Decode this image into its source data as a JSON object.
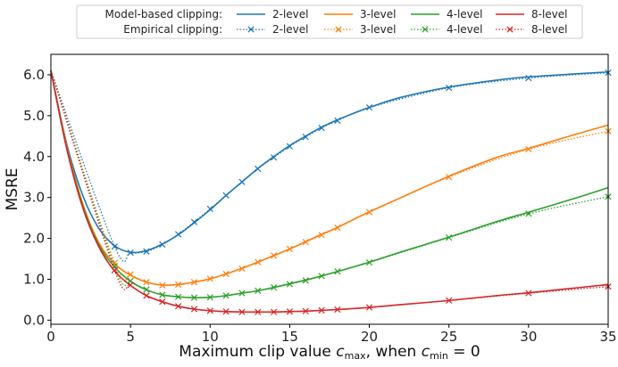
{
  "chart_data": {
    "type": "line",
    "title": "",
    "xlabel": "Maximum clip value c_max, when c_min = 0",
    "ylabel": "MSRE",
    "xlim": [
      0,
      35
    ],
    "ylim": [
      -0.1,
      6.5
    ],
    "xticks": [
      "0",
      "5",
      "10",
      "15",
      "20",
      "25",
      "30",
      "35"
    ],
    "yticks": [
      "0.0",
      "1.0",
      "2.0",
      "3.0",
      "4.0",
      "5.0",
      "6.0"
    ],
    "grid": false,
    "legend_placement": "top-center, outside plot",
    "legend": {
      "row_labels": [
        "Model-based clipping:",
        "Empirical clipping:"
      ],
      "series_labels": [
        "2-level",
        "3-level",
        "4-level",
        "8-level"
      ]
    },
    "series": [
      {
        "name": "2-level",
        "group": "Model-based clipping",
        "color": "#1f77b4",
        "style": "solid",
        "x": [
          0,
          1,
          2,
          3,
          4,
          5,
          6,
          7,
          8,
          9,
          10,
          11,
          12,
          13,
          14,
          15,
          16,
          17,
          18,
          20,
          22,
          25,
          28,
          30,
          35
        ],
        "y": [
          6.1,
          4.3,
          3.05,
          2.25,
          1.82,
          1.66,
          1.7,
          1.86,
          2.09,
          2.38,
          2.7,
          3.05,
          3.38,
          3.71,
          4.0,
          4.27,
          4.5,
          4.72,
          4.9,
          5.2,
          5.45,
          5.7,
          5.87,
          5.95,
          6.07
        ]
      },
      {
        "name": "3-level",
        "group": "Model-based clipping",
        "color": "#ff7f0e",
        "style": "solid",
        "x": [
          0,
          1,
          2,
          3,
          4,
          5,
          6,
          7,
          8,
          9,
          10,
          11,
          12,
          13,
          14,
          15,
          16,
          17,
          18,
          20,
          22,
          25,
          28,
          30,
          33,
          35
        ],
        "y": [
          6.1,
          4.25,
          2.85,
          1.9,
          1.38,
          1.1,
          0.93,
          0.86,
          0.87,
          0.93,
          1.01,
          1.13,
          1.27,
          1.42,
          1.58,
          1.74,
          1.92,
          2.1,
          2.27,
          2.65,
          3.0,
          3.52,
          3.98,
          4.2,
          4.55,
          4.77
        ]
      },
      {
        "name": "4-level",
        "group": "Model-based clipping",
        "color": "#2ca02c",
        "style": "solid",
        "x": [
          0,
          1,
          2,
          3,
          4,
          5,
          6,
          7,
          8,
          9,
          10,
          11,
          12,
          13,
          14,
          15,
          16,
          17,
          18,
          20,
          22,
          25,
          28,
          30,
          33,
          35
        ],
        "y": [
          6.1,
          4.2,
          2.8,
          1.85,
          1.3,
          0.95,
          0.74,
          0.62,
          0.57,
          0.55,
          0.56,
          0.6,
          0.66,
          0.72,
          0.8,
          0.89,
          0.98,
          1.08,
          1.19,
          1.42,
          1.67,
          2.03,
          2.41,
          2.64,
          2.99,
          3.24
        ]
      },
      {
        "name": "8-level",
        "group": "Model-based clipping",
        "color": "#d62728",
        "style": "solid",
        "x": [
          0,
          1,
          2,
          3,
          4,
          5,
          6,
          7,
          8,
          9,
          10,
          11,
          12,
          13,
          14,
          15,
          16,
          17,
          18,
          20,
          22,
          25,
          28,
          30,
          33,
          35
        ],
        "y": [
          6.1,
          4.18,
          2.75,
          1.8,
          1.2,
          0.85,
          0.6,
          0.45,
          0.34,
          0.27,
          0.23,
          0.21,
          0.2,
          0.2,
          0.2,
          0.21,
          0.22,
          0.24,
          0.26,
          0.31,
          0.38,
          0.48,
          0.6,
          0.67,
          0.79,
          0.87
        ]
      },
      {
        "name": "2-level",
        "group": "Empirical clipping",
        "color": "#1f77b4",
        "style": "dotted",
        "x": [
          0,
          4,
          5,
          6,
          7,
          8,
          9,
          10,
          11,
          12,
          13,
          14,
          15,
          16,
          17,
          18,
          20,
          25,
          30,
          35
        ],
        "y": [
          6.1,
          1.8,
          1.65,
          1.68,
          1.85,
          2.1,
          2.4,
          2.72,
          3.05,
          3.38,
          3.7,
          3.98,
          4.25,
          4.48,
          4.7,
          4.88,
          5.2,
          5.68,
          5.92,
          6.05
        ]
      },
      {
        "name": "3-level",
        "group": "Empirical clipping",
        "color": "#ff7f0e",
        "style": "dotted",
        "x": [
          0,
          4,
          5,
          6,
          7,
          8,
          9,
          10,
          11,
          12,
          13,
          14,
          15,
          16,
          17,
          18,
          20,
          25,
          30,
          35
        ],
        "y": [
          6.1,
          1.4,
          1.12,
          0.93,
          0.85,
          0.87,
          0.93,
          1.01,
          1.13,
          1.26,
          1.42,
          1.58,
          1.74,
          1.91,
          2.08,
          2.26,
          2.64,
          3.5,
          4.18,
          4.62
        ]
      },
      {
        "name": "4-level",
        "group": "Empirical clipping",
        "color": "#2ca02c",
        "style": "dotted",
        "x": [
          0,
          4,
          5,
          6,
          7,
          8,
          9,
          10,
          11,
          12,
          13,
          14,
          15,
          16,
          17,
          18,
          20,
          25,
          30,
          35
        ],
        "y": [
          6.1,
          1.32,
          0.96,
          0.75,
          0.62,
          0.57,
          0.55,
          0.56,
          0.6,
          0.66,
          0.72,
          0.8,
          0.88,
          0.97,
          1.08,
          1.19,
          1.41,
          2.02,
          2.6,
          3.02
        ]
      },
      {
        "name": "8-level",
        "group": "Empirical clipping",
        "color": "#d62728",
        "style": "dotted",
        "x": [
          0,
          4,
          5,
          6,
          7,
          8,
          9,
          10,
          11,
          12,
          13,
          14,
          15,
          16,
          17,
          18,
          20,
          25,
          30,
          35
        ],
        "y": [
          6.1,
          1.22,
          0.86,
          0.6,
          0.45,
          0.34,
          0.27,
          0.23,
          0.21,
          0.2,
          0.2,
          0.2,
          0.21,
          0.22,
          0.24,
          0.26,
          0.31,
          0.48,
          0.66,
          0.82
        ]
      }
    ]
  }
}
